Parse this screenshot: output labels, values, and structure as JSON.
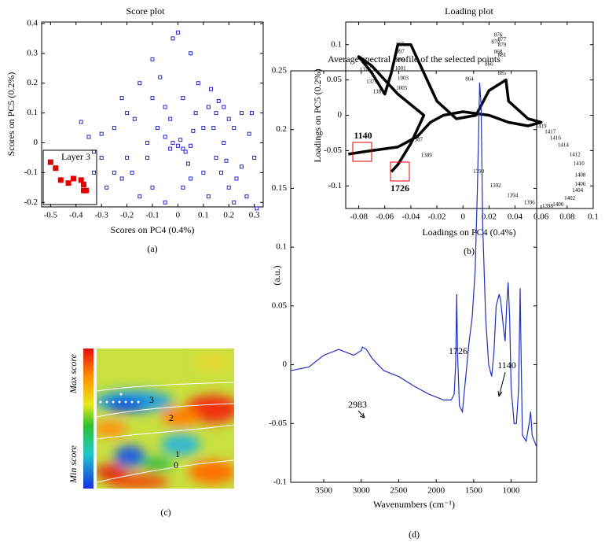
{
  "chart_data": [
    {
      "type": "scatter",
      "title": "Score plot",
      "x_label": "Scores on PC4 (0.4%)",
      "y_label": "Scores on PC5 (0.2%)",
      "panel_label": "(a)",
      "annotations": [
        "Layer 3"
      ],
      "xlim": [
        -0.535,
        0.335
      ],
      "ylim": [
        -0.215,
        0.405
      ],
      "xticks": [
        -0.5,
        -0.4,
        -0.3,
        -0.2,
        -0.1,
        0,
        0.1,
        0.2,
        0.3
      ],
      "yticks": [
        -0.2,
        -0.1,
        0,
        0.1,
        0.2,
        0.3,
        0.4
      ],
      "series": [
        {
          "color": "#2626c8",
          "marker": "open-square",
          "x": [
            0,
            0.02,
            -0.02,
            0.01,
            0.03,
            -0.03,
            0.05,
            -0.05,
            0,
            -0.02,
            0.05,
            -0.1,
            -0.15,
            -0.2,
            -0.25,
            -0.3,
            -0.28,
            -0.22,
            -0.18,
            -0.12,
            -0.08,
            -0.1,
            -0.05,
            0.02,
            0.07,
            0.1,
            0.12,
            0.15,
            0.18,
            0.2,
            0.22,
            0.25,
            0.28,
            0.3,
            0.15,
            0.17,
            0.2,
            0.22,
            0.27,
            0.31,
            0.1,
            0.05,
            0.02,
            -0.05,
            -0.1,
            -0.15,
            -0.2,
            -0.25,
            -0.3,
            -0.33,
            -0.35,
            -0.38,
            -0.33,
            0.08,
            0.13,
            -0.07,
            -0.17,
            0.25,
            0.12,
            0.18,
            0.23,
            -0.12,
            0.06,
            -0.03,
            0.14,
            0.19,
            -0.22,
            0.04,
            0.29,
            0.16
          ],
          "values": [
            -0.01,
            -0.02,
            0,
            0.01,
            -0.03,
            -0.02,
            -0.01,
            0.02,
            0.37,
            0.35,
            0.3,
            0.28,
            0.2,
            0.1,
            0.05,
            -0.05,
            -0.15,
            -0.12,
            -0.1,
            -0.05,
            0.05,
            0.15,
            0.12,
            0.15,
            0.1,
            0.05,
            0.12,
            0.1,
            0.12,
            0.08,
            0.05,
            0.1,
            0.03,
            -0.05,
            -0.05,
            -0.1,
            -0.15,
            -0.2,
            -0.18,
            -0.22,
            -0.1,
            -0.12,
            -0.15,
            -0.2,
            -0.15,
            -0.18,
            -0.05,
            -0.1,
            0.03,
            -0.1,
            0.02,
            0.07,
            -0.03,
            0.2,
            0.18,
            0.22,
            0.08,
            -0.08,
            -0.18,
            0,
            -0.12,
            0,
            0.04,
            0.08,
            0.05,
            -0.06,
            0.15,
            -0.07,
            0.1,
            0.14
          ]
        },
        {
          "color": "#e00000",
          "marker": "filled-square",
          "x": [
            -0.5,
            -0.48,
            -0.46,
            -0.43,
            -0.41,
            -0.38,
            -0.37,
            -0.37,
            -0.36
          ],
          "values": [
            -0.065,
            -0.085,
            -0.125,
            -0.135,
            -0.12,
            -0.125,
            -0.14,
            -0.16,
            -0.16
          ]
        }
      ]
    },
    {
      "type": "scatter",
      "title": "Loading plot",
      "x_label": "Loadings on PC4 (0.4%)",
      "y_label": "Loadings on PC5 (0.2%)",
      "panel_label": "(b)",
      "annotations": [
        "1140",
        "1726"
      ],
      "xlim": [
        -0.09,
        0.1
      ],
      "ylim": [
        -0.132,
        0.132
      ],
      "xticks": [
        -0.08,
        -0.06,
        -0.04,
        -0.02,
        0,
        0.02,
        0.04,
        0.06,
        0.08,
        0.1
      ],
      "yticks": [
        -0.1,
        -0.05,
        0,
        0.05,
        0.1
      ],
      "series": [
        {
          "color": "#000000",
          "style": "line",
          "x": [
            -0.088,
            -0.07,
            -0.05,
            -0.035,
            -0.025,
            -0.015,
            0,
            0.02,
            0.035,
            0.05,
            0.06,
            0.05,
            0.035,
            0.033,
            0.02,
            0.01,
            -0.005,
            -0.02,
            -0.03,
            -0.04,
            -0.05,
            -0.055,
            -0.06,
            -0.07,
            -0.08,
            -0.07,
            -0.05,
            -0.03,
            -0.04,
            -0.05,
            -0.055
          ],
          "values": [
            -0.055,
            -0.05,
            -0.045,
            -0.03,
            -0.01,
            0,
            0.005,
            0,
            -0.01,
            -0.015,
            -0.01,
            -0.005,
            0.02,
            0.05,
            0.035,
            0,
            -0.005,
            0.02,
            0.06,
            0.1,
            0.1,
            0.06,
            0.03,
            0.06,
            0.083,
            0.07,
            0.03,
            0,
            -0.04,
            -0.07,
            -0.08
          ]
        },
        {
          "color": "#000000",
          "style": "text",
          "labels": [
            876,
            877,
            879,
            870,
            868,
            881,
            866,
            885,
            864,
            995,
            997,
            999,
            1001,
            1003,
            1005,
            1377,
            1379,
            1381,
            1387,
            1389,
            1390,
            1392,
            1394,
            1396,
            1398,
            1400,
            1402,
            1404,
            1406,
            1408,
            1410,
            1412,
            1414,
            1416,
            1417,
            1419
          ],
          "x": [
            0.027,
            0.03,
            0.03,
            0.025,
            0.027,
            0.03,
            0.02,
            0.03,
            0.005,
            -0.048,
            -0.048,
            -0.048,
            -0.048,
            -0.046,
            -0.047,
            -0.075,
            -0.07,
            -0.065,
            -0.035,
            -0.028,
            0.012,
            0.025,
            0.038,
            0.051,
            0.065,
            0.073,
            0.082,
            0.088,
            0.09,
            0.09,
            0.089,
            0.086,
            0.077,
            0.071,
            0.067,
            0.06
          ],
          "values": [
            0.113,
            0.107,
            0.099,
            0.103,
            0.089,
            0.085,
            0.072,
            0.059,
            0.051,
            0.1,
            0.09,
            0.078,
            0.066,
            0.052,
            0.038,
            0.064,
            0.047,
            0.033,
            -0.035,
            -0.057,
            -0.08,
            -0.1,
            -0.114,
            -0.124,
            -0.129,
            -0.127,
            -0.118,
            -0.107,
            -0.098,
            -0.085,
            -0.069,
            -0.056,
            -0.043,
            -0.033,
            -0.024,
            -0.016
          ]
        }
      ]
    },
    {
      "type": "heatmap",
      "panel_label": "(c)",
      "colorbar_labels": [
        "Max score",
        "Min score"
      ],
      "region_labels": [
        "3",
        "2",
        "1",
        "0"
      ]
    },
    {
      "type": "line",
      "title": "Average spectral profile of the selected points",
      "x_label": "Wavenumbers (cm⁻¹)",
      "y_label": "(a.u.)",
      "panel_label": "(d)",
      "annotations": [
        "2983",
        "1726",
        "1140"
      ],
      "xlim": [
        3940,
        660
      ],
      "ylim": [
        -0.1,
        0.25
      ],
      "xticks": [
        3500,
        3000,
        2500,
        2000,
        1500,
        1000
      ],
      "yticks": [
        -0.1,
        -0.05,
        0,
        0.05,
        0.1,
        0.15,
        0.2,
        0.25
      ],
      "series": [
        {
          "color": "#2030c0",
          "x": [
            3940,
            3700,
            3500,
            3300,
            3100,
            3000,
            2983,
            2930,
            2850,
            2700,
            2500,
            2300,
            2100,
            1900,
            1800,
            1760,
            1740,
            1726,
            1715,
            1690,
            1650,
            1620,
            1560,
            1520,
            1480,
            1450,
            1420,
            1400,
            1380,
            1340,
            1300,
            1260,
            1230,
            1200,
            1160,
            1140,
            1100,
            1080,
            1060,
            1040,
            1020,
            1000,
            960,
            930,
            900,
            880,
            870,
            850,
            800,
            760,
            740,
            720,
            660
          ],
          "values": [
            -0.005,
            -0.002,
            0.008,
            0.013,
            0.008,
            0.012,
            0.015,
            0.013,
            0.005,
            -0.005,
            -0.01,
            -0.018,
            -0.025,
            -0.03,
            -0.03,
            -0.025,
            0,
            0.06,
            0.01,
            -0.035,
            -0.04,
            -0.02,
            0.02,
            0.04,
            0.08,
            0.15,
            0.24,
            0.22,
            0.12,
            0.04,
            0,
            -0.01,
            0.01,
            0.05,
            0.06,
            0.055,
            0.03,
            0.02,
            0.05,
            0.07,
            0.04,
            -0.02,
            -0.05,
            -0.05,
            -0.02,
            0.065,
            0.02,
            -0.06,
            -0.065,
            -0.05,
            -0.04,
            -0.06,
            -0.07
          ]
        }
      ]
    }
  ]
}
